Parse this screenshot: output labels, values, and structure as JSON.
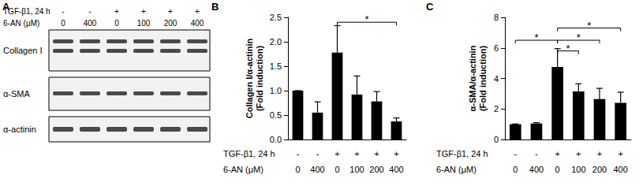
{
  "blot": {
    "label": "A",
    "rows": [
      {
        "label": "TGF-β1, 24 h",
        "values": [
          "-",
          "-",
          "+",
          "+",
          "+",
          "+"
        ]
      },
      {
        "label": "6-AN (μM)",
        "values": [
          0,
          400,
          0,
          100,
          200,
          400
        ]
      }
    ],
    "bands": [
      "Collagen I",
      "α-SMA",
      "α-actinin"
    ]
  },
  "chart_data": [
    {
      "panel": "B",
      "type": "bar",
      "ylabel": "Collagen I/α-actinin\n(Fold induction)",
      "x_rows": [
        {
          "label": "TGF-β1, 24 h",
          "values": [
            "-",
            "-",
            "+",
            "+",
            "+",
            "+"
          ]
        },
        {
          "label": "6-AN (μM)",
          "values": [
            0,
            400,
            0,
            100,
            200,
            400
          ]
        }
      ],
      "values": [
        1.0,
        0.55,
        1.78,
        0.92,
        0.78,
        0.37
      ],
      "errors": [
        0,
        0.22,
        0.55,
        0.38,
        0.2,
        0.07
      ],
      "color": "#000000",
      "ylim": [
        0,
        2.5
      ],
      "yticks": [
        {
          "value": 0,
          "label": "0.0"
        },
        {
          "value": 0.5,
          "label": "0.5"
        },
        {
          "value": 1,
          "label": "1.0"
        },
        {
          "value": 1.5,
          "label": "1.5"
        },
        {
          "value": 2,
          "label": "2.0"
        },
        {
          "value": 2.5,
          "label": "2.5"
        }
      ],
      "significance": [
        {
          "from": 2,
          "to": 5,
          "y": 2.4,
          "label": "*"
        }
      ],
      "grid": false
    },
    {
      "panel": "C",
      "type": "bar",
      "ylabel": "α-SMA/α-actinin\n(Fold induction)",
      "x_rows": [
        {
          "label": "TGF-β1, 24 h",
          "values": [
            "-",
            "-",
            "+",
            "+",
            "+",
            "+"
          ]
        },
        {
          "label": "6-AN (μM)",
          "values": [
            0,
            400,
            0,
            100,
            200,
            400
          ]
        }
      ],
      "values": [
        1.0,
        1.05,
        4.75,
        3.15,
        2.65,
        2.4
      ],
      "errors": [
        0.02,
        0.05,
        1.2,
        0.5,
        0.7,
        0.7
      ],
      "color": "#000000",
      "ylim": [
        0,
        8
      ],
      "yticks": [
        0,
        2,
        4,
        6,
        8
      ],
      "significance": [
        {
          "from": 0,
          "to": 2,
          "y": 6.5,
          "label": "*"
        },
        {
          "from": 2,
          "to": 5,
          "y": 7.3,
          "label": "*"
        },
        {
          "from": 2,
          "to": 4,
          "y": 6.5,
          "label": "*"
        },
        {
          "from": 2,
          "to": 3,
          "y": 5.8,
          "label": "*"
        }
      ],
      "grid": false
    }
  ]
}
